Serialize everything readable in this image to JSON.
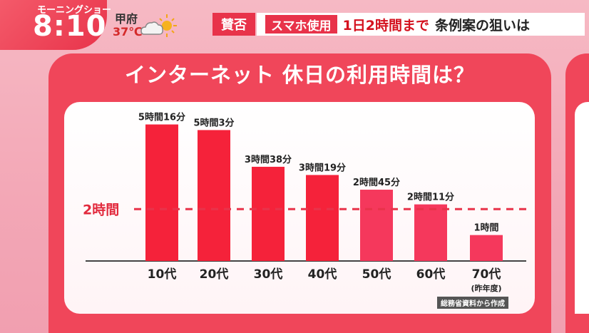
{
  "overlay": {
    "show_name": "モーニングショー",
    "time": "8:10",
    "city": "甲府",
    "temperature": "37℃",
    "weather_icon": "cloud-sun-icon",
    "tag_pro_con": "賛否",
    "headline_tag": "スマホ使用",
    "headline_red": "1日2時間まで",
    "headline_dark": "条例案の狙いは"
  },
  "source_note": "総務省資料から作成",
  "colors": {
    "bar": "#f5223a",
    "bar_light": "#f5385c",
    "ref_line": "#e8334a",
    "board": "#f0465a"
  },
  "chart_data": {
    "type": "bar",
    "title": "インターネット 休日の利用時間は？",
    "categories": [
      "10代",
      "20代",
      "30代",
      "40代",
      "50代",
      "60代",
      "70代"
    ],
    "category_notes": [
      "",
      "",
      "",
      "",
      "",
      "",
      "(昨年度)"
    ],
    "values": [
      316,
      303,
      218,
      199,
      165,
      131,
      60
    ],
    "value_labels": [
      "5時間16分",
      "5時間3分",
      "3時間38分",
      "3時間19分",
      "2時間45分",
      "2時間11分",
      "1時間"
    ],
    "unit": "minutes",
    "reference_line": {
      "value": 120,
      "label": "2時間"
    },
    "ylim": [
      0,
      340
    ],
    "grid": false,
    "legend": "none"
  }
}
